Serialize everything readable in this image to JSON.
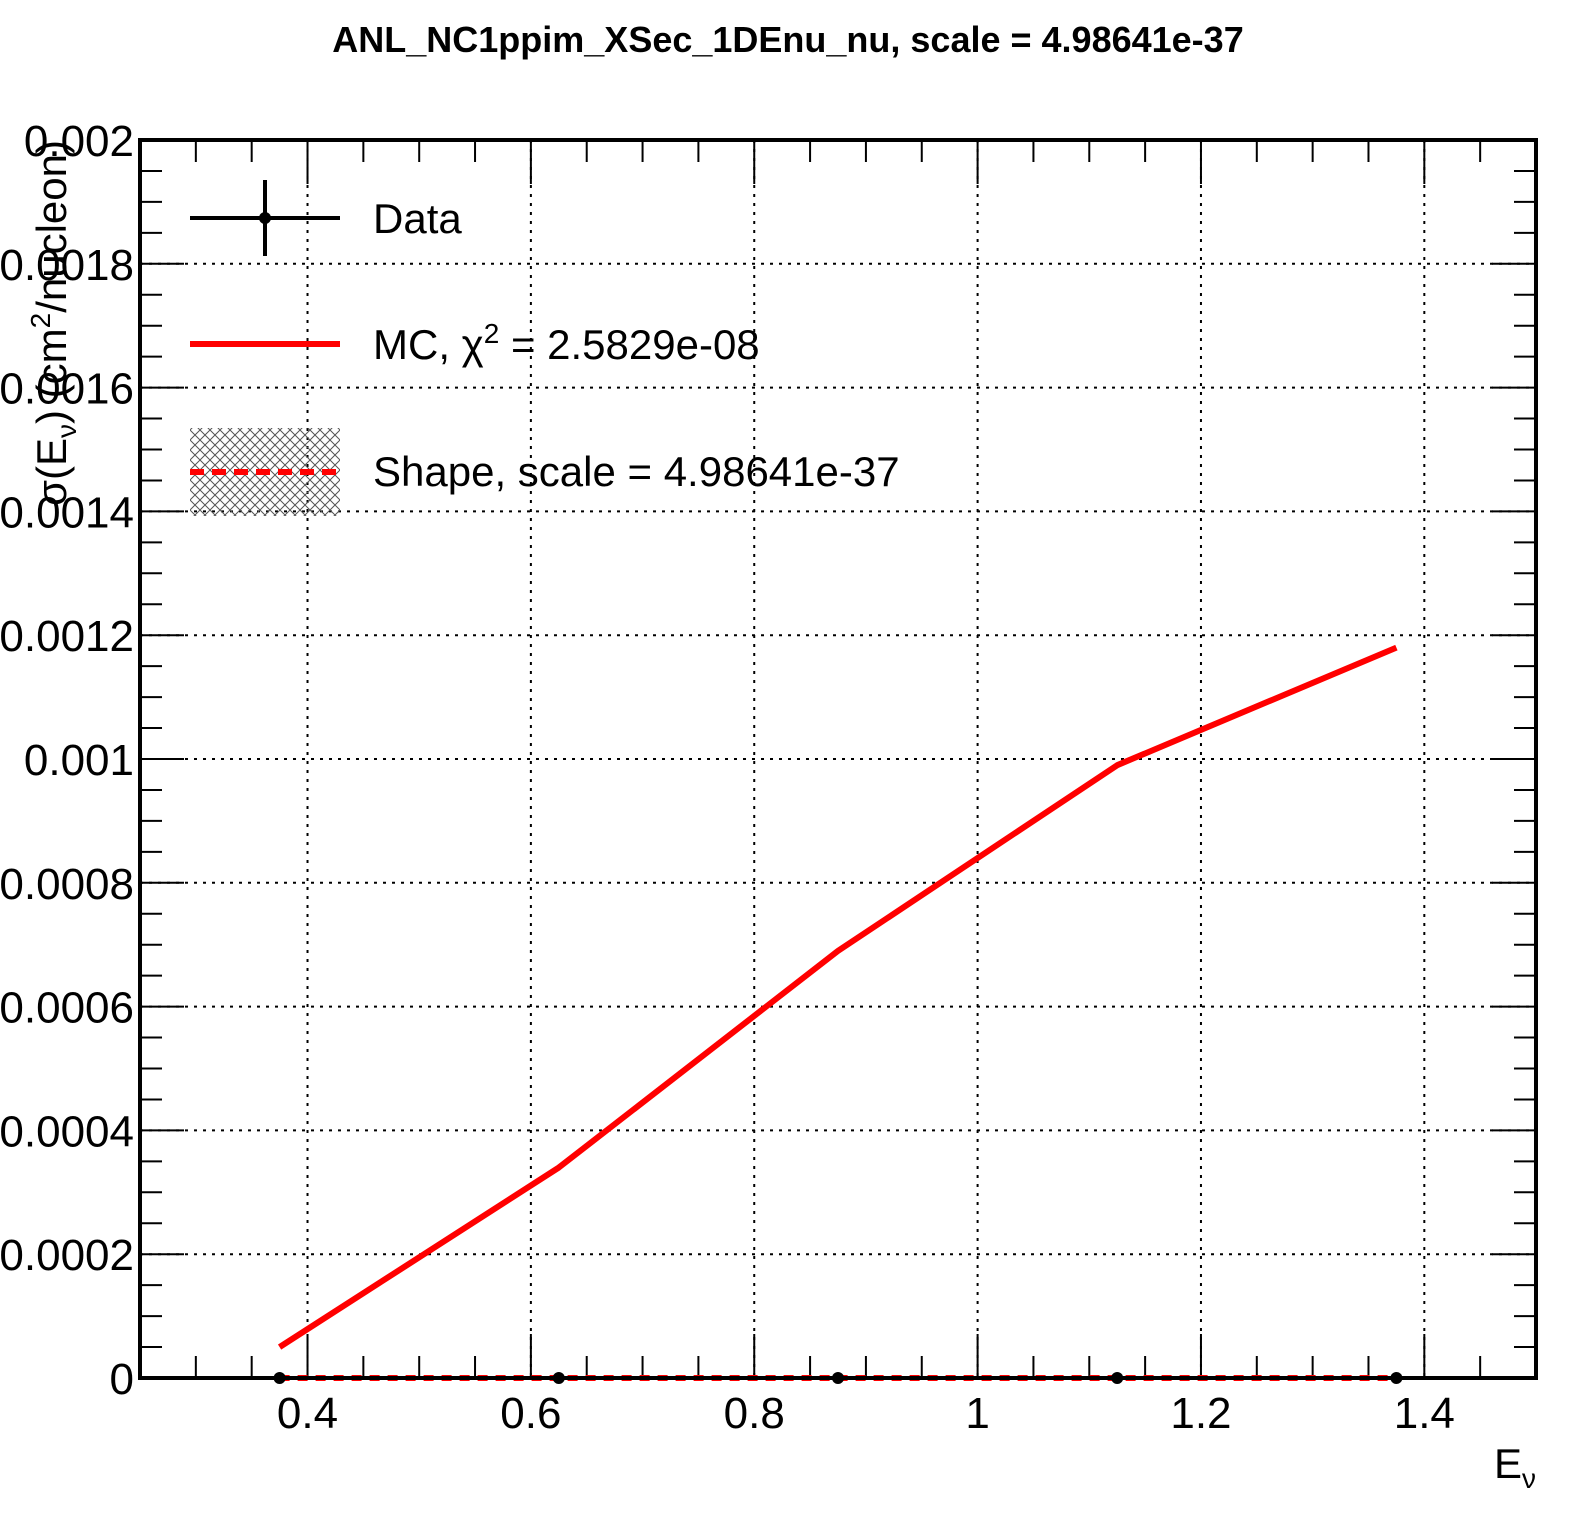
{
  "chart_data": {
    "type": "line",
    "title": "ANL_NC1ppim_XSec_1DEnu_nu, scale = 4.98641e-37",
    "xlabel": "E",
    "xlabel_sub": "ν",
    "ylabel": "σ(E",
    "ylabel_sub": "ν",
    "ylabel_rest": ") (cm",
    "ylabel_sup": "2",
    "ylabel_end": "/nucleon)",
    "xlim": [
      0.25,
      1.5
    ],
    "ylim": [
      0,
      0.002
    ],
    "x_ticks": [
      0.4,
      0.6,
      0.8,
      1.0,
      1.2,
      1.4
    ],
    "x_tick_labels": [
      "0.4",
      "0.6",
      "0.8",
      "1",
      "1.2",
      "1.4"
    ],
    "y_ticks": [
      0,
      0.0002,
      0.0004,
      0.0006,
      0.0008,
      0.001,
      0.0012,
      0.0014,
      0.0016,
      0.0018,
      0.002
    ],
    "y_tick_labels": [
      "0",
      "0.0002",
      "0.0004",
      "0.0006",
      "0.0008",
      "0.001",
      "0.0012",
      "0.0014",
      "0.0016",
      "0.0018",
      "0.002"
    ],
    "grid": true,
    "legend_position": "top-left",
    "series": [
      {
        "name": "Data",
        "style": "points-with-errors",
        "color": "#000000",
        "x": [
          0.375,
          0.625,
          0.875,
          1.125,
          1.375
        ],
        "values": [
          0,
          0,
          0,
          0,
          0
        ]
      },
      {
        "name": "MC, χ² = 2.5829e-08",
        "legend_text": "MC, χ",
        "legend_sup": "2",
        "legend_rest": " = 2.5829e-08",
        "style": "line",
        "color": "#ff0000",
        "x": [
          0.375,
          0.625,
          0.875,
          1.125,
          1.375
        ],
        "values": [
          5e-05,
          0.00034,
          0.00069,
          0.00099,
          0.00118
        ]
      },
      {
        "name": "Shape, scale = 4.98641e-37",
        "style": "dashed-line-hatched",
        "color": "#ff0000",
        "x": [
          0.375,
          0.625,
          0.875,
          1.125,
          1.375
        ],
        "values": [
          0,
          0,
          0,
          0,
          0
        ]
      }
    ]
  }
}
